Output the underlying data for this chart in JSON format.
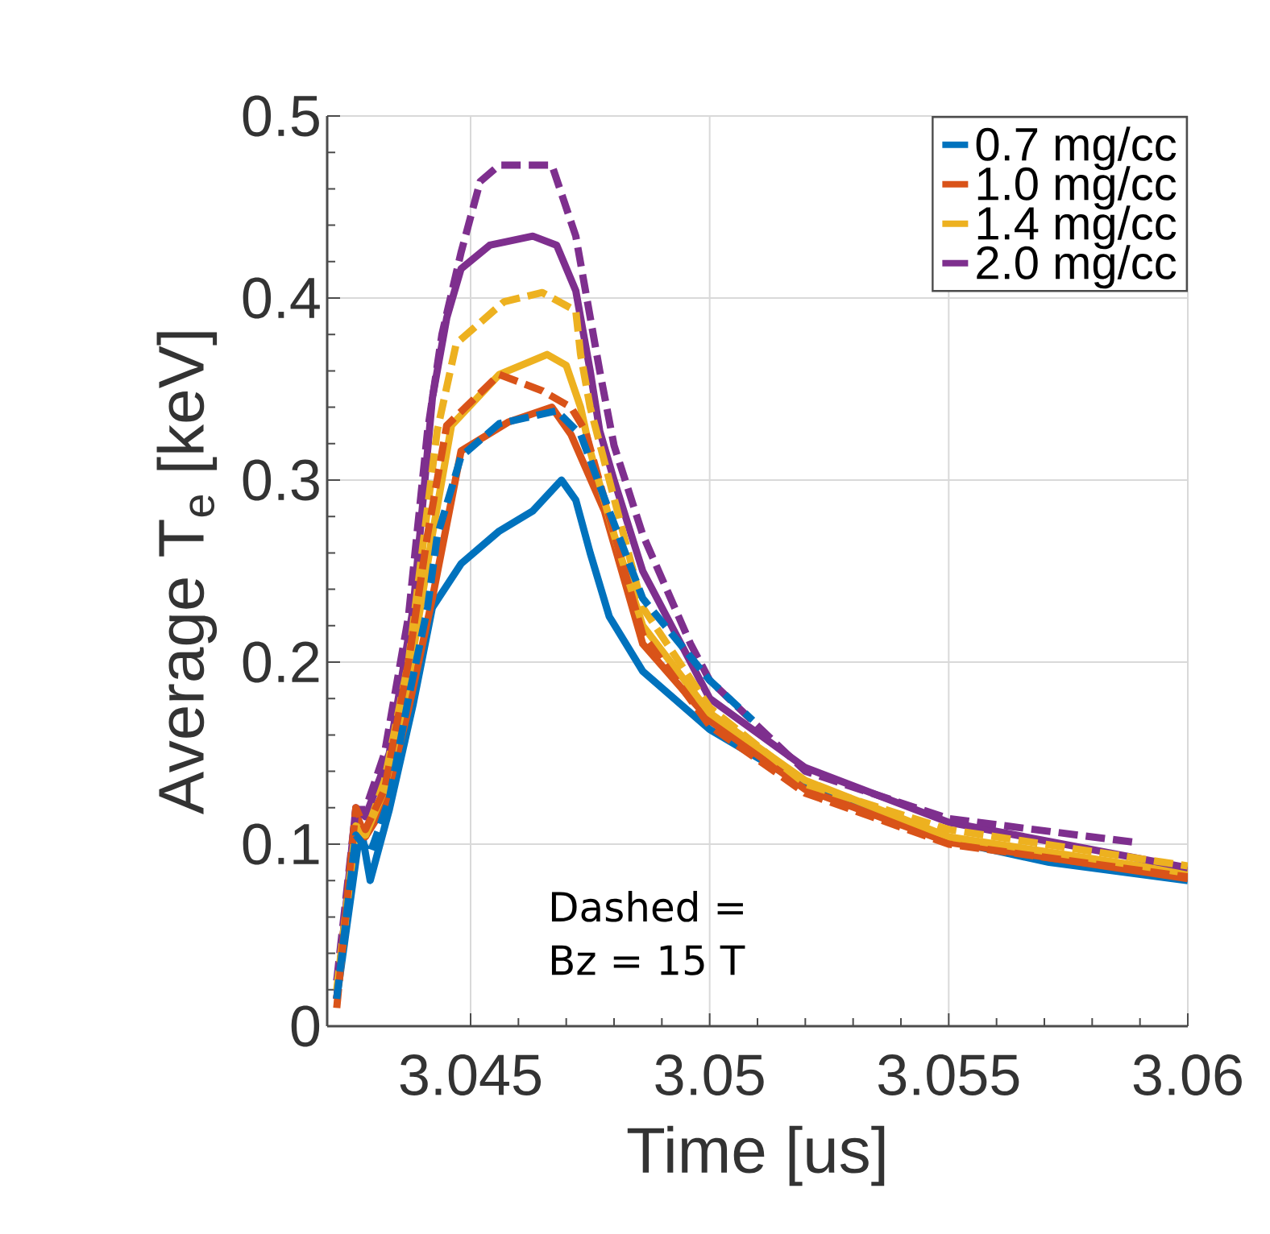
{
  "chart_data": {
    "type": "line",
    "xlabel": "Time [us]",
    "ylabel": "Average T$_{e}$ [keV]",
    "xlim": [
      3.042,
      3.06
    ],
    "xticks": [
      3.045,
      3.05,
      3.055,
      3.06
    ],
    "ylim": [
      0,
      0.5
    ],
    "yticks": [
      0,
      0.1,
      0.2,
      0.3,
      0.4,
      0.5
    ],
    "grid": true,
    "legend": "top right",
    "marker": "none",
    "annotations": [
      "Dashed =",
      "Bz = 15 T"
    ],
    "series": [
      {
        "name": "0.7 mg/cc",
        "color": "#0072bd",
        "line_style": "solid",
        "x": [
          3.0422,
          3.0427,
          3.0429,
          3.0433,
          3.0438,
          3.0442,
          3.0448,
          3.0456,
          3.0463,
          3.0469,
          3.0472,
          3.0475,
          3.0479,
          3.0486,
          3.05,
          3.052,
          3.055,
          3.0571,
          3.06
        ],
        "values": [
          0.015,
          0.11,
          0.08,
          0.119,
          0.177,
          0.23,
          0.254,
          0.272,
          0.283,
          0.3,
          0.289,
          0.26,
          0.225,
          0.195,
          0.163,
          0.132,
          0.102,
          0.09,
          0.08
        ]
      },
      {
        "name": "1.0 mg/cc",
        "color": "#d95319",
        "line_style": "solid",
        "x": [
          3.0422,
          3.0426,
          3.0428,
          3.0432,
          3.0437,
          3.0442,
          3.0448,
          3.0458,
          3.0467,
          3.0471,
          3.0478,
          3.0486,
          3.05,
          3.052,
          3.055,
          3.06
        ],
        "values": [
          0.015,
          0.117,
          0.104,
          0.121,
          0.174,
          0.235,
          0.316,
          0.332,
          0.34,
          0.325,
          0.283,
          0.21,
          0.168,
          0.13,
          0.101,
          0.081
        ]
      },
      {
        "name": "1.4 mg/cc",
        "color": "#edb120",
        "line_style": "solid",
        "x": [
          3.0422,
          3.0426,
          3.0428,
          3.0432,
          3.0437,
          3.0442,
          3.0446,
          3.0456,
          3.0466,
          3.047,
          3.0473,
          3.0475,
          3.048,
          3.0486,
          3.05,
          3.052,
          3.055,
          3.06
        ],
        "values": [
          0.015,
          0.11,
          0.105,
          0.13,
          0.19,
          0.27,
          0.33,
          0.358,
          0.369,
          0.363,
          0.34,
          0.316,
          0.27,
          0.22,
          0.172,
          0.135,
          0.104,
          0.084
        ]
      },
      {
        "name": "2.0 mg/cc",
        "color": "#7e2f8e",
        "line_style": "solid",
        "x": [
          3.0422,
          3.0426,
          3.0428,
          3.0433,
          3.0438,
          3.0442,
          3.0445,
          3.0448,
          3.0454,
          3.0463,
          3.0468,
          3.0472,
          3.0475,
          3.0477,
          3.048,
          3.0486,
          3.05,
          3.052,
          3.055,
          3.06
        ],
        "values": [
          0.015,
          0.12,
          0.115,
          0.15,
          0.23,
          0.345,
          0.389,
          0.416,
          0.429,
          0.434,
          0.429,
          0.404,
          0.36,
          0.327,
          0.3,
          0.25,
          0.18,
          0.142,
          0.112,
          0.087
        ]
      },
      {
        "color": "#0072bd",
        "line_style": "dashed",
        "x": [
          3.0422,
          3.0426,
          3.0429,
          3.0433,
          3.0437,
          3.0441,
          3.0443,
          3.0448,
          3.0456,
          3.0468,
          3.0473,
          3.0479,
          3.0486,
          3.05,
          3.0509
        ],
        "values": [
          0.015,
          0.105,
          0.095,
          0.125,
          0.18,
          0.23,
          0.269,
          0.313,
          0.331,
          0.338,
          0.325,
          0.283,
          0.235,
          0.19,
          0.168
        ]
      },
      {
        "color": "#d95319",
        "line_style": "dashed",
        "x": [
          3.0422,
          3.0426,
          3.0428,
          3.0432,
          3.0437,
          3.0441,
          3.0445,
          3.0456,
          3.0465,
          3.0471,
          3.0474,
          3.0479,
          3.0486,
          3.05,
          3.052,
          3.055,
          3.06
        ],
        "values": [
          0.01,
          0.12,
          0.108,
          0.13,
          0.2,
          0.27,
          0.33,
          0.358,
          0.349,
          0.34,
          0.327,
          0.28,
          0.215,
          0.165,
          0.128,
          0.1,
          0.082
        ]
      },
      {
        "color": "#edb120",
        "line_style": "dashed",
        "x": [
          3.0422,
          3.0426,
          3.0428,
          3.0432,
          3.0437,
          3.0443,
          3.0447,
          3.0457,
          3.0465,
          3.0472,
          3.0473,
          3.0475,
          3.0486,
          3.05,
          3.052,
          3.055,
          3.06
        ],
        "values": [
          0.02,
          0.11,
          0.105,
          0.135,
          0.2,
          0.327,
          0.375,
          0.398,
          0.403,
          0.393,
          0.369,
          0.34,
          0.23,
          0.175,
          0.133,
          0.108,
          0.088
        ]
      },
      {
        "color": "#7e2f8e",
        "line_style": "dashed",
        "x": [
          3.0422,
          3.0426,
          3.0428,
          3.0432,
          3.0437,
          3.0441,
          3.0444,
          3.0448,
          3.0452,
          3.0456,
          3.0467,
          3.0472,
          3.0477,
          3.048,
          3.0486,
          3.0496,
          3.05,
          3.052,
          3.055,
          3.0589
        ],
        "values": [
          0.025,
          0.119,
          0.119,
          0.15,
          0.225,
          0.327,
          0.38,
          0.425,
          0.464,
          0.473,
          0.473,
          0.434,
          0.36,
          0.319,
          0.27,
          0.21,
          0.19,
          0.14,
          0.114,
          0.101
        ]
      }
    ]
  }
}
